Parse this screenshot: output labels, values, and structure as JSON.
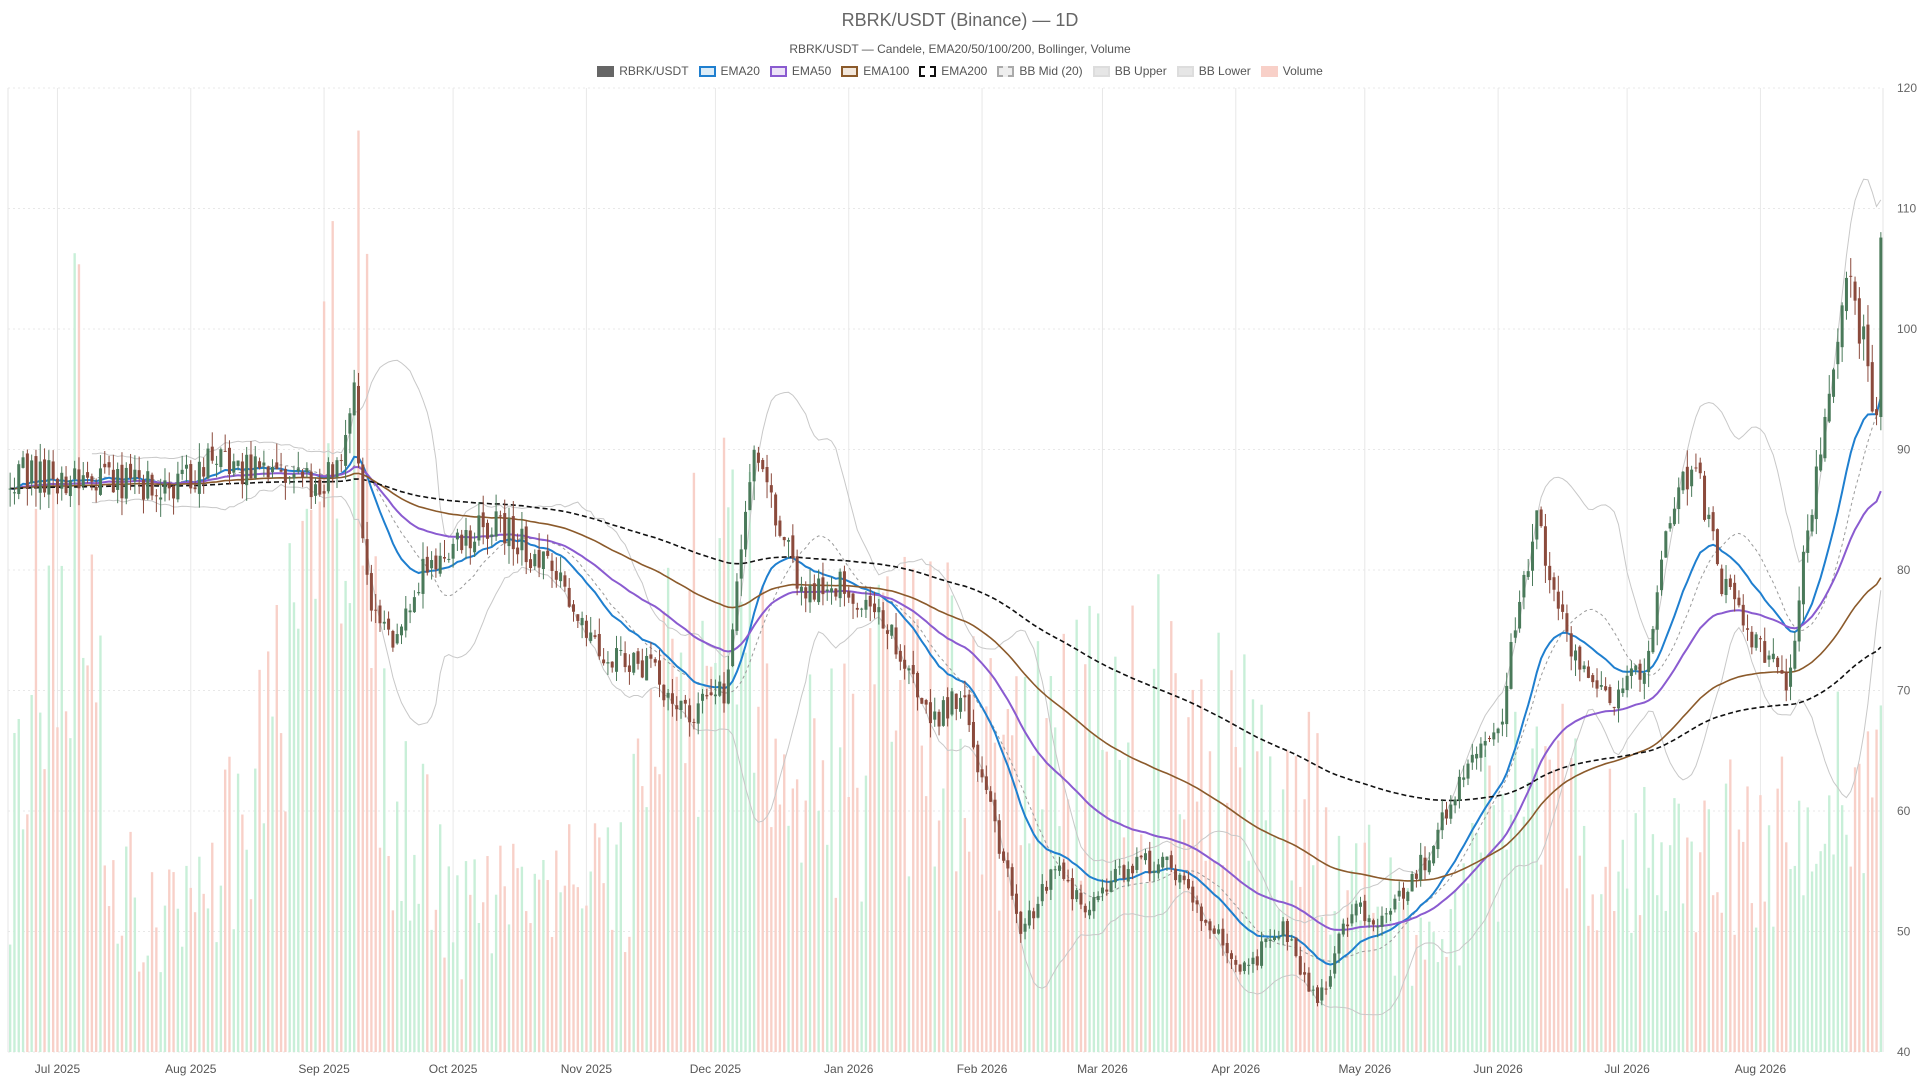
{
  "chart_data": {
    "type": "candlestick",
    "title": "RBRK/USDT (Binance) — 1D",
    "subtitle": "RBRK/USDT — Candele, EMA20/50/100/200, Bollinger, Volume",
    "date_range": [
      "2025-06-20",
      "2026-08-29"
    ],
    "ylim": [
      40,
      120
    ],
    "y_ticks": [
      40,
      50,
      60,
      70,
      80,
      90,
      100,
      110,
      120
    ],
    "x_ticks": [
      {
        "date": "2025-07-01",
        "label": "Jul 2025"
      },
      {
        "date": "2025-08-01",
        "label": "Aug 2025"
      },
      {
        "date": "2025-09-01",
        "label": "Sep 2025"
      },
      {
        "date": "2025-10-01",
        "label": "Oct 2025"
      },
      {
        "date": "2025-11-01",
        "label": "Nov 2025"
      },
      {
        "date": "2025-12-01",
        "label": "Dec 2025"
      },
      {
        "date": "2026-01-01",
        "label": "Jan 2026"
      },
      {
        "date": "2026-02-01",
        "label": "Feb 2026"
      },
      {
        "date": "2026-03-01",
        "label": "Mar 2026"
      },
      {
        "date": "2026-04-01",
        "label": "Apr 2026"
      },
      {
        "date": "2026-05-01",
        "label": "May 2026"
      },
      {
        "date": "2026-06-01",
        "label": "Jun 2026"
      },
      {
        "date": "2026-07-01",
        "label": "Jul 2026"
      },
      {
        "date": "2026-08-01",
        "label": "Aug 2026"
      }
    ],
    "grid": true,
    "legend_position": "top-center",
    "legend": [
      {
        "label": "RBRK/USDT",
        "fill": "#666666",
        "stroke": "#666666",
        "dash": false
      },
      {
        "label": "EMA20",
        "fill": "#dcecf7",
        "stroke": "#1f7fcf",
        "dash": false
      },
      {
        "label": "EMA50",
        "fill": "#ece3f7",
        "stroke": "#8a5bd0",
        "dash": false
      },
      {
        "label": "EMA100",
        "fill": "#f2e7dc",
        "stroke": "#8b5a2b",
        "dash": false
      },
      {
        "label": "EMA200",
        "fill": "#ffffff",
        "stroke": "#111111",
        "dash": true
      },
      {
        "label": "BB Mid (20)",
        "fill": "#eeeeee",
        "stroke": "#aaaaaa",
        "dash": true
      },
      {
        "label": "BB Upper",
        "fill": "#e6e6e6",
        "stroke": "#dddddd",
        "dash": false
      },
      {
        "label": "BB Lower",
        "fill": "#e6e6e6",
        "stroke": "#dddddd",
        "dash": false
      },
      {
        "label": "Volume",
        "fill": "#f8d0c8",
        "stroke": "#f8d0c8",
        "dash": false
      }
    ],
    "colors": {
      "up": "#4a7a5a",
      "down": "#8b4a3c",
      "vol_up": "#c8efd8",
      "vol_down": "#f8d0c8",
      "grid": "#e8e8e8"
    },
    "close_anchors": [
      [
        "2025-06-20",
        88.0
      ],
      [
        "2025-07-01",
        87.5
      ],
      [
        "2025-07-10",
        88.0
      ],
      [
        "2025-07-20",
        87.0
      ],
      [
        "2025-07-28",
        86.5
      ],
      [
        "2025-08-05",
        89.0
      ],
      [
        "2025-08-15",
        88.5
      ],
      [
        "2025-08-25",
        87.0
      ],
      [
        "2025-09-04",
        88.0
      ],
      [
        "2025-09-08",
        96.0
      ],
      [
        "2025-09-09",
        88.0
      ],
      [
        "2025-09-12",
        76.0
      ],
      [
        "2025-09-17",
        74.0
      ],
      [
        "2025-09-22",
        79.0
      ],
      [
        "2025-10-05",
        83.0
      ],
      [
        "2025-10-12",
        84.0
      ],
      [
        "2025-10-20",
        81.0
      ],
      [
        "2025-10-28",
        78.0
      ],
      [
        "2025-11-05",
        73.0
      ],
      [
        "2025-11-15",
        72.0
      ],
      [
        "2025-11-25",
        68.0
      ],
      [
        "2025-12-03",
        70.0
      ],
      [
        "2025-12-10",
        91.0
      ],
      [
        "2025-12-20",
        79.0
      ],
      [
        "2026-01-01",
        78.5
      ],
      [
        "2026-01-10",
        75.0
      ],
      [
        "2026-01-20",
        67.0
      ],
      [
        "2026-01-27",
        70.0
      ],
      [
        "2026-02-03",
        60.0
      ],
      [
        "2026-02-10",
        50.0
      ],
      [
        "2026-02-18",
        55.0
      ],
      [
        "2026-02-26",
        52.0
      ],
      [
        "2026-03-05",
        55.0
      ],
      [
        "2026-03-15",
        56.0
      ],
      [
        "2026-03-25",
        51.0
      ],
      [
        "2026-04-03",
        47.0
      ],
      [
        "2026-04-12",
        50.0
      ],
      [
        "2026-04-20",
        44.0
      ],
      [
        "2026-04-28",
        52.0
      ],
      [
        "2026-05-05",
        51.0
      ],
      [
        "2026-05-15",
        56.0
      ],
      [
        "2026-05-25",
        64.0
      ],
      [
        "2026-06-01",
        66.0
      ],
      [
        "2026-06-06",
        78.0
      ],
      [
        "2026-06-10",
        84.0
      ],
      [
        "2026-06-15",
        76.0
      ],
      [
        "2026-06-22",
        71.0
      ],
      [
        "2026-06-28",
        69.0
      ],
      [
        "2026-07-05",
        72.0
      ],
      [
        "2026-07-12",
        86.0
      ],
      [
        "2026-07-17",
        89.0
      ],
      [
        "2026-07-22",
        80.0
      ],
      [
        "2026-07-28",
        76.0
      ],
      [
        "2026-08-03",
        72.0
      ],
      [
        "2026-08-08",
        71.0
      ],
      [
        "2026-08-12",
        84.0
      ],
      [
        "2026-08-18",
        96.0
      ],
      [
        "2026-08-21",
        104.0
      ],
      [
        "2026-08-25",
        99.0
      ],
      [
        "2026-08-28",
        92.0
      ],
      [
        "2026-08-29",
        106.0
      ]
    ],
    "volume_anchors": [
      [
        "2025-06-20",
        62
      ],
      [
        "2025-06-25",
        80
      ],
      [
        "2025-07-05",
        105
      ],
      [
        "2025-07-15",
        58
      ],
      [
        "2025-08-01",
        55
      ],
      [
        "2025-08-10",
        63
      ],
      [
        "2025-09-10",
        115
      ],
      [
        "2025-09-15",
        72
      ],
      [
        "2025-10-01",
        55
      ],
      [
        "2025-11-10",
        60
      ],
      [
        "2025-12-05",
        108
      ],
      [
        "2025-12-15",
        66
      ],
      [
        "2026-01-25",
        82
      ],
      [
        "2026-02-05",
        70
      ],
      [
        "2026-03-10",
        78
      ],
      [
        "2026-04-20",
        67
      ],
      [
        "2026-05-15",
        50
      ],
      [
        "2026-06-05",
        72
      ],
      [
        "2026-07-01",
        60
      ],
      [
        "2026-08-10",
        64
      ],
      [
        "2026-08-29",
        72
      ]
    ],
    "ema_periods": [
      20,
      50,
      100,
      200
    ],
    "bollinger": {
      "period": 20,
      "stddev": 2
    }
  }
}
